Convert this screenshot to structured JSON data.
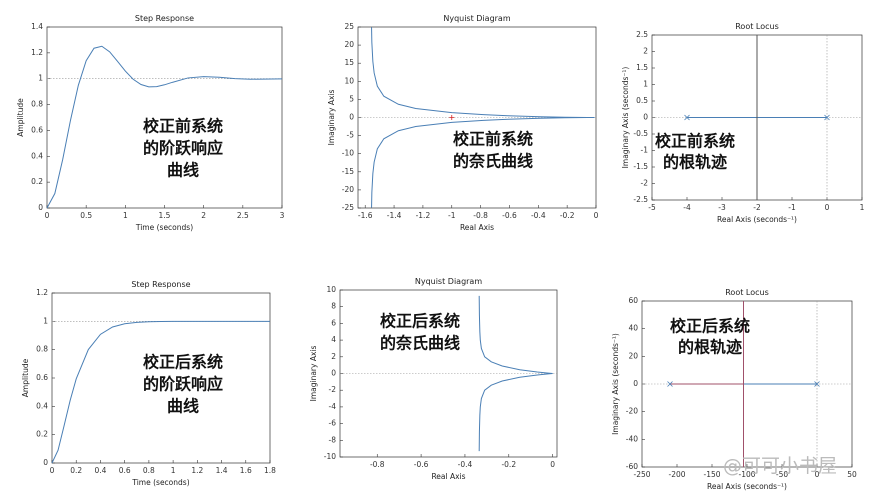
{
  "chart_data": [
    {
      "type": "line",
      "title": "Step Response",
      "xlabel": "Time (seconds)",
      "ylabel": "Amplitude",
      "xlim": [
        0,
        3
      ],
      "ylim": [
        0,
        1.4
      ],
      "xticks": [
        0,
        0.5,
        1,
        1.5,
        2,
        2.5,
        3
      ],
      "yticks": [
        0,
        0.2,
        0.4,
        0.6,
        0.8,
        1,
        1.2,
        1.4
      ],
      "ref_y": [
        1
      ],
      "ref_x": [],
      "annotation": [
        "校正前系统",
        "的阶跃响应",
        "曲线"
      ],
      "series": [
        {
          "color": "#4a7fb5",
          "x": [
            0,
            0.1,
            0.2,
            0.3,
            0.4,
            0.5,
            0.6,
            0.7,
            0.8,
            0.9,
            1.0,
            1.1,
            1.2,
            1.3,
            1.4,
            1.5,
            1.6,
            1.8,
            2.0,
            2.2,
            2.4,
            2.6,
            3.0
          ],
          "values": [
            0,
            0.112,
            0.374,
            0.679,
            0.949,
            1.139,
            1.236,
            1.251,
            1.208,
            1.135,
            1.059,
            0.996,
            0.955,
            0.937,
            0.939,
            0.953,
            0.972,
            1.006,
            1.016,
            1.011,
            1.001,
            0.996,
            0.999
          ]
        }
      ]
    },
    {
      "type": "line",
      "title": "Nyquist Diagram",
      "xlabel": "Real Axis",
      "ylabel": "Imaginary Axis",
      "xlim": [
        -1.65,
        0
      ],
      "ylim": [
        -25,
        25
      ],
      "xticks": [
        -1.6,
        -1.4,
        -1.2,
        -1,
        -0.8,
        -0.6,
        -0.4,
        -0.2,
        0
      ],
      "yticks": [
        -25,
        -20,
        -15,
        -10,
        -5,
        0,
        5,
        10,
        15,
        20,
        25
      ],
      "ref_y": [
        0
      ],
      "ref_x": [],
      "annotation": [
        "校正前系统",
        "的奈氏曲线"
      ],
      "series": [
        {
          "color": "#4a7fb5",
          "x": [
            -1.556,
            -1.554,
            -1.547,
            -1.538,
            -1.516,
            -1.471,
            -1.37,
            -1.25,
            -1.0,
            -0.781,
            -0.61,
            -0.385,
            -0.216,
            -0.06,
            -0.0099
          ],
          "values": [
            24.9,
            20.72,
            15.47,
            12.31,
            8.66,
            5.88,
            3.65,
            2.5,
            1.333,
            0.781,
            0.488,
            0.22,
            0.086,
            0.012,
            0.0008
          ]
        },
        {
          "color": "#4a7fb5",
          "x": [
            -1.556,
            -1.554,
            -1.547,
            -1.538,
            -1.516,
            -1.471,
            -1.37,
            -1.25,
            -1.0,
            -0.781,
            -0.61,
            -0.385,
            -0.216,
            -0.06,
            -0.0099
          ],
          "values": [
            -24.9,
            -20.72,
            -15.47,
            -12.31,
            -8.66,
            -5.88,
            -3.65,
            -2.5,
            -1.333,
            -0.781,
            -0.488,
            -0.22,
            -0.086,
            -0.012,
            -0.0008
          ]
        },
        {
          "color": "#d62728",
          "marker": "+",
          "x": [
            -1
          ],
          "values": [
            0
          ]
        }
      ]
    },
    {
      "type": "line",
      "title": "Root Locus",
      "xlabel": "Real Axis (seconds⁻¹)",
      "ylabel": "Imaginary Axis (seconds⁻¹)",
      "xlim": [
        -5,
        1
      ],
      "ylim": [
        -2.5,
        2.5
      ],
      "xticks": [
        -5,
        -4,
        -3,
        -2,
        -1,
        0,
        1
      ],
      "yticks": [
        -2.5,
        -2,
        -1.5,
        -1,
        -0.5,
        0,
        0.5,
        1,
        1.5,
        2,
        2.5
      ],
      "ref_y": [
        0
      ],
      "ref_x": [
        0
      ],
      "annotation": [
        "校正前系统",
        "的根轨迹"
      ],
      "series": [
        {
          "color": "#4a7fb5",
          "x": [
            -4,
            -2,
            0
          ],
          "values": [
            0,
            0,
            0
          ]
        },
        {
          "color": "#555555",
          "x": [
            -2,
            -2
          ],
          "values": [
            -2.5,
            2.5
          ]
        },
        {
          "color": "#4a7fb5",
          "marker": "x",
          "x": [
            -4,
            0
          ],
          "values": [
            0,
            0
          ]
        }
      ]
    },
    {
      "type": "line",
      "title": "Step Response",
      "xlabel": "Time (seconds)",
      "ylabel": "Amplitude",
      "xlim": [
        0,
        1.8
      ],
      "ylim": [
        0,
        1.2
      ],
      "xticks": [
        0,
        0.2,
        0.4,
        0.6,
        0.8,
        1,
        1.2,
        1.4,
        1.6,
        1.8
      ],
      "yticks": [
        0,
        0.2,
        0.4,
        0.6,
        0.8,
        1,
        1.2
      ],
      "ref_y": [
        1
      ],
      "ref_x": [],
      "annotation": [
        "校正后系统",
        "的阶跃响应",
        "曲线"
      ],
      "series": [
        {
          "color": "#4a7fb5",
          "x": [
            0,
            0.05,
            0.1,
            0.15,
            0.2,
            0.3,
            0.4,
            0.5,
            0.6,
            0.7,
            0.8,
            0.9,
            1.0,
            1.2,
            1.4,
            1.6,
            1.8
          ],
          "values": [
            0,
            0.09,
            0.264,
            0.442,
            0.594,
            0.801,
            0.908,
            0.96,
            0.983,
            0.993,
            0.997,
            0.999,
            1,
            1,
            1,
            1,
            1
          ]
        }
      ]
    },
    {
      "type": "line",
      "title": "Nyquist Diagram",
      "xlabel": "Real Axis",
      "ylabel": "Imaginary Axis",
      "xlim": [
        -0.97,
        0.02
      ],
      "ylim": [
        -10,
        10
      ],
      "xticks": [
        -0.8,
        -0.6,
        -0.4,
        -0.2,
        0
      ],
      "yticks": [
        -10,
        -8,
        -6,
        -4,
        -2,
        0,
        2,
        4,
        6,
        8,
        10
      ],
      "ref_y": [
        0
      ],
      "ref_x": [],
      "annotation": [
        "校正后系统",
        "的奈氏曲线"
      ],
      "series": [
        {
          "color": "#4a7fb5",
          "x": [
            -0.335,
            -0.334,
            -0.332,
            -0.33,
            -0.325,
            -0.31,
            -0.28,
            -0.23,
            -0.15,
            -0.07,
            -0.02,
            0
          ],
          "values": [
            9.3,
            7,
            5,
            4,
            3,
            2,
            1.4,
            0.9,
            0.45,
            0.18,
            0.05,
            0
          ]
        },
        {
          "color": "#4a7fb5",
          "x": [
            -0.335,
            -0.334,
            -0.332,
            -0.33,
            -0.325,
            -0.31,
            -0.28,
            -0.23,
            -0.15,
            -0.07,
            -0.02,
            0
          ],
          "values": [
            -9.3,
            -7,
            -5,
            -4,
            -3,
            -2,
            -1.4,
            -0.9,
            -0.45,
            -0.18,
            -0.05,
            0
          ]
        }
      ]
    },
    {
      "type": "line",
      "title": "Root Locus",
      "xlabel": "Real Axis (seconds⁻¹)",
      "ylabel": "Imaginary Axis (seconds⁻¹)",
      "xlim": [
        -250,
        50
      ],
      "ylim": [
        -60,
        60
      ],
      "xticks": [
        -250,
        -200,
        -150,
        -100,
        -50,
        0,
        50
      ],
      "yticks": [
        -60,
        -40,
        -20,
        0,
        20,
        40,
        60
      ],
      "ref_y": [
        0
      ],
      "ref_x": [
        0
      ],
      "annotation": [
        "校正后系统",
        "的根轨迹"
      ],
      "series": [
        {
          "color": "#a0506a",
          "x": [
            -210,
            -105
          ],
          "values": [
            0,
            0
          ]
        },
        {
          "color": "#4a7fb5",
          "x": [
            -105,
            0
          ],
          "values": [
            0,
            0
          ]
        },
        {
          "color": "#a0506a",
          "x": [
            -105,
            -105
          ],
          "values": [
            -60,
            60
          ]
        },
        {
          "color": "#4a7fb5",
          "marker": "x",
          "x": [
            -210,
            0
          ],
          "values": [
            0,
            0
          ]
        }
      ]
    }
  ],
  "watermark": "@可可小书屋"
}
